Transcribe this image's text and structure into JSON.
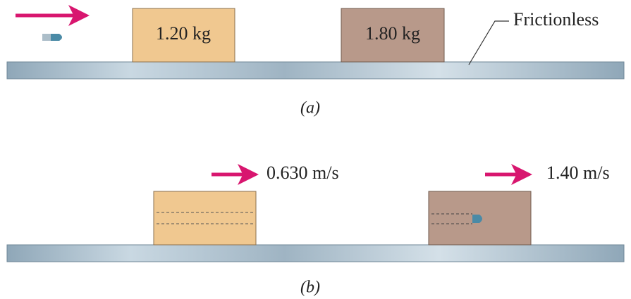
{
  "panel_a": {
    "blocks": [
      {
        "label": "1.20 kg"
      },
      {
        "label": "1.80 kg"
      }
    ],
    "surface_label": "Frictionless",
    "caption": "(a)"
  },
  "panel_b": {
    "velocities": [
      {
        "label": "0.630 m/s"
      },
      {
        "label": "1.40 m/s"
      }
    ],
    "caption": "(b)"
  }
}
